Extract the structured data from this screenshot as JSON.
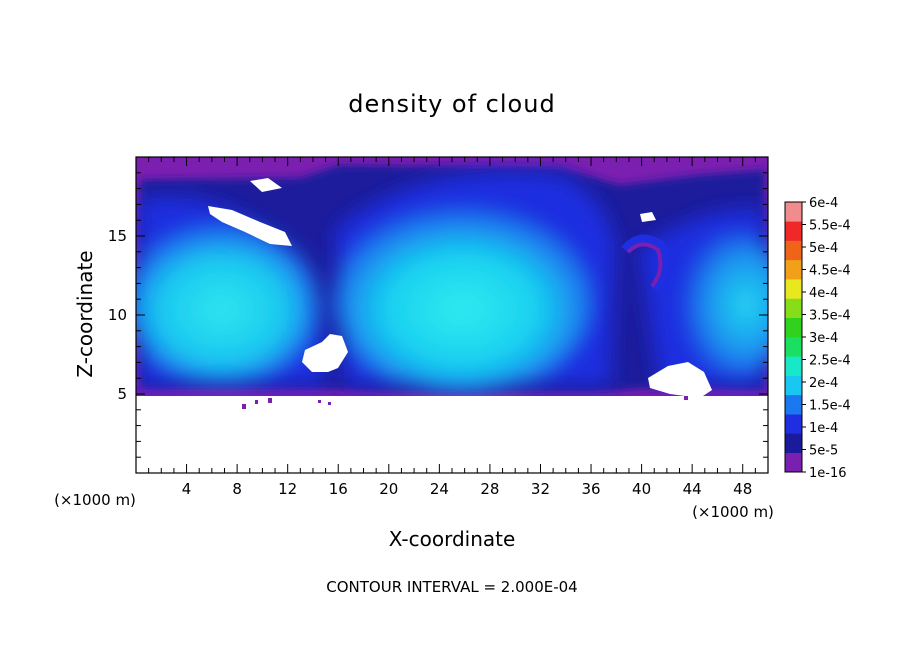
{
  "chart_data": {
    "type": "heatmap",
    "title": "density of cloud",
    "xlabel": "X-coordinate",
    "ylabel": "Z-coordinate",
    "x_unit": "(×1000 m)",
    "y_unit": "(×1000 m)",
    "xlim": [
      0,
      50
    ],
    "ylim": [
      0,
      20
    ],
    "x_ticks": [
      4,
      8,
      12,
      16,
      20,
      24,
      28,
      32,
      36,
      40,
      44,
      48
    ],
    "y_ticks": [
      5,
      10,
      15
    ],
    "cloud_base_z": 5,
    "cloud_top_z": 19.8,
    "colorbar": {
      "labels": [
        "1e-16",
        "5e-5",
        "1e-4",
        "1.5e-4",
        "2e-4",
        "2.5e-4",
        "3e-4",
        "3.5e-4",
        "4e-4",
        "4.5e-4",
        "5e-4",
        "5.5e-4",
        "6e-4"
      ],
      "colors": [
        "#7a1fb0",
        "#1a1a9c",
        "#1e2ee0",
        "#1a78f0",
        "#19c8f0",
        "#19e8c8",
        "#19e060",
        "#30d21e",
        "#88dd19",
        "#e8e81e",
        "#f0a019",
        "#f06419",
        "#f02828",
        "#f08c8c"
      ]
    },
    "contour_interval": "CONTOUR INTERVAL = 2.000E-04"
  }
}
